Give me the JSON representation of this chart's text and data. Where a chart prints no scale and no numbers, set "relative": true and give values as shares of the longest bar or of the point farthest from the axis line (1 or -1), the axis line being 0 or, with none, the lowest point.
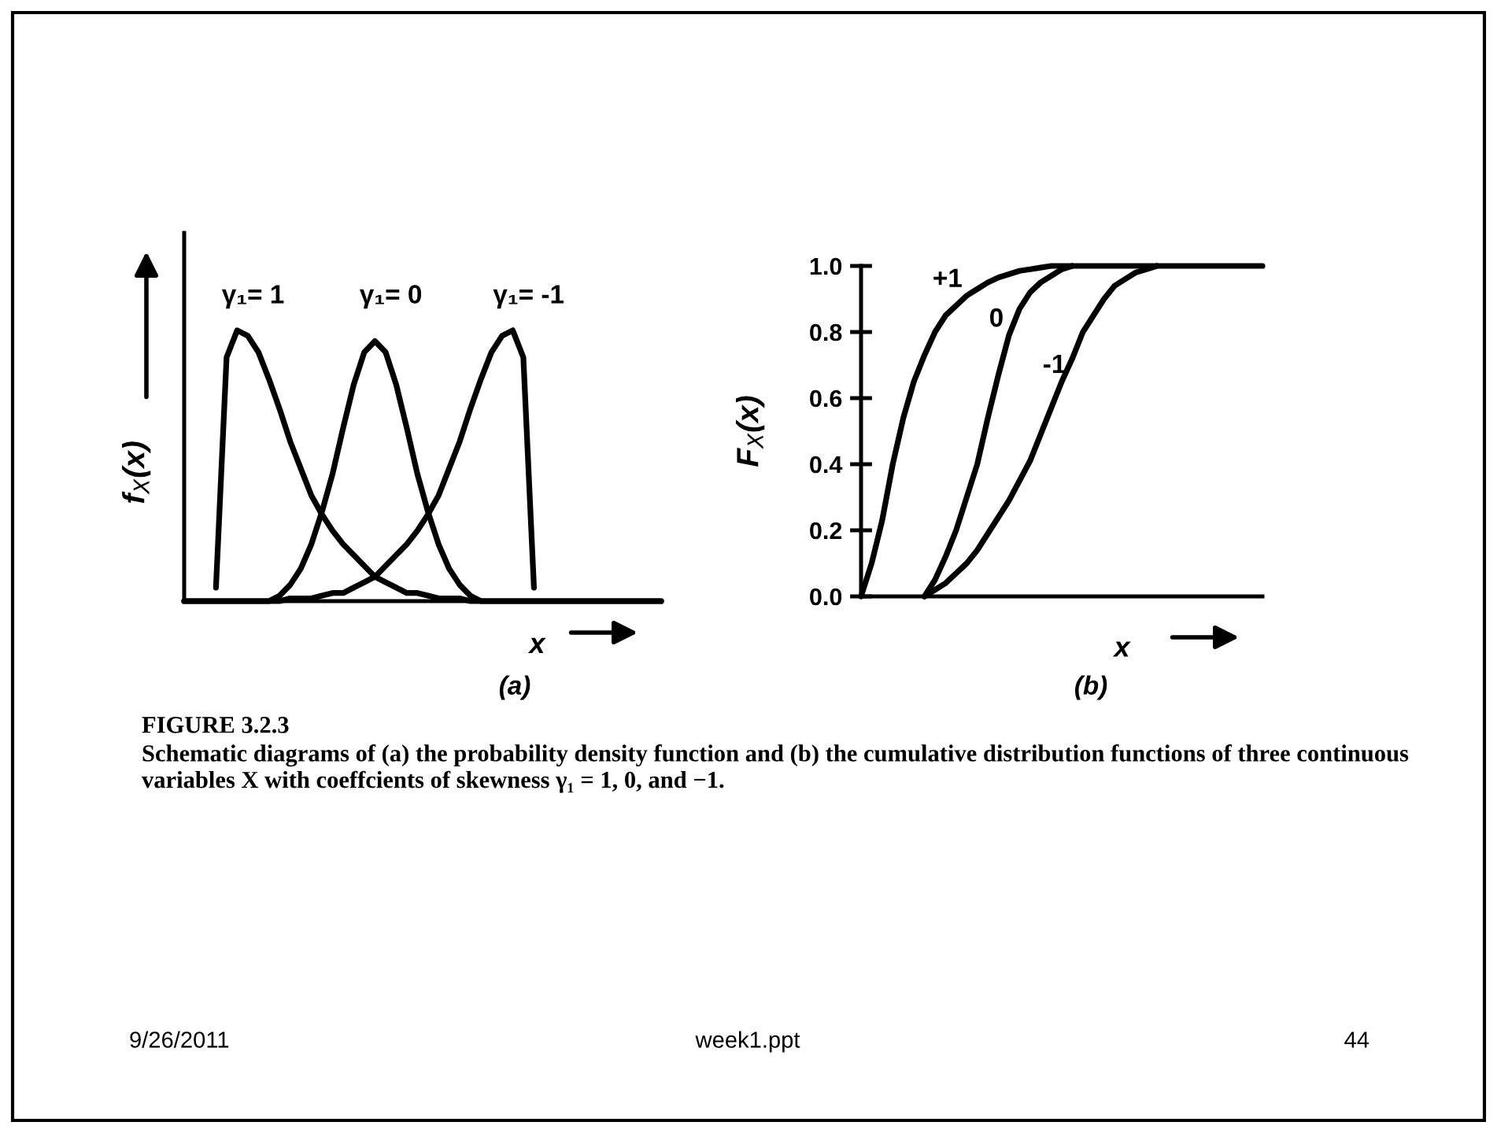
{
  "chart_data": [
    {
      "type": "line",
      "relative": true,
      "tick_labels": false,
      "ylabel": "f$_{X}$(x)",
      "xlabel": "x",
      "categories": [
        null,
        null,
        null,
        null,
        null,
        null,
        null,
        null,
        null,
        null,
        null,
        null,
        null,
        null,
        null,
        null,
        null,
        null,
        null,
        null,
        null,
        null,
        null,
        null,
        null,
        null,
        null,
        null,
        null,
        null,
        null,
        null,
        null,
        null,
        null,
        null,
        null,
        null,
        null,
        null,
        null,
        null,
        null,
        null,
        null,
        null
      ],
      "series": [
        {
          "name": "γ₁= 1",
          "color": "#000000",
          "values": [
            null,
            null,
            null,
            0.05,
            0.9,
            1.0,
            0.98,
            0.92,
            0.82,
            0.71,
            0.59,
            0.49,
            0.39,
            0.32,
            0.26,
            0.21,
            0.17,
            0.13,
            0.09,
            0.07,
            0.05,
            0.03,
            0.03,
            0.02,
            0.01,
            0.01,
            0.01,
            0,
            0,
            0,
            0,
            0,
            0,
            0,
            0,
            0,
            0,
            0,
            0,
            0,
            0,
            0,
            0,
            0,
            0,
            0
          ]
        },
        {
          "name": "γ₁= 0",
          "color": "#000000",
          "values": [
            0,
            0,
            0,
            0,
            0,
            0,
            0,
            0,
            0,
            0.02,
            0.06,
            0.12,
            0.21,
            0.33,
            0.47,
            0.64,
            0.8,
            0.92,
            0.96,
            0.92,
            0.8,
            0.64,
            0.47,
            0.33,
            0.21,
            0.12,
            0.06,
            0.02,
            0,
            0,
            0,
            0,
            0,
            0,
            0,
            0,
            0,
            0,
            0,
            0,
            0,
            0,
            0,
            0,
            0,
            0
          ]
        },
        {
          "name": "γ₁= -1",
          "color": "#000000",
          "values": [
            0,
            0,
            0,
            0,
            0,
            0,
            0,
            0,
            0,
            0,
            0.01,
            0.01,
            0.01,
            0.02,
            0.03,
            0.03,
            0.05,
            0.07,
            0.09,
            0.13,
            0.17,
            0.21,
            0.26,
            0.32,
            0.39,
            0.49,
            0.59,
            0.71,
            0.82,
            0.92,
            0.98,
            1.0,
            0.9,
            0.05,
            null,
            null,
            null,
            null,
            null,
            null,
            null,
            null,
            null,
            null,
            null,
            null
          ]
        }
      ],
      "annotations": [
        "(a)",
        "FIGURE 3.2.3",
        "Schematic diagrams of (a) the probability density function and (b) the cumulative distribution functions of three continuous variables X with coeffcients of skewness γ₁ = 1, 0, and −1.",
        "9/26/2011",
        "week1.ppt",
        "44"
      ]
    },
    {
      "type": "line",
      "tick_labels": "y",
      "ylabel": "F$_{X}$(x)",
      "xlabel": "x",
      "ylim": [
        0,
        1
      ],
      "yticks": [
        {
          "value": 0,
          "label": "0.0"
        },
        {
          "value": 0.2,
          "label": "0.2"
        },
        {
          "value": 0.4,
          "label": "0.4"
        },
        {
          "value": 0.6,
          "label": "0.6"
        },
        {
          "value": 0.8,
          "label": "0.8"
        },
        {
          "value": 1,
          "label": "1.0"
        }
      ],
      "categories": [
        null,
        null,
        null,
        null,
        null,
        null,
        null,
        null,
        null,
        null,
        null,
        null,
        null,
        null,
        null,
        null,
        null,
        null,
        null,
        null,
        null,
        null,
        null,
        null,
        null,
        null,
        null,
        null,
        null,
        null,
        null,
        null,
        null,
        null,
        null,
        null,
        null,
        null,
        null
      ],
      "series": [
        {
          "name": "+1",
          "color": "#000000",
          "values": [
            0,
            0.1,
            0.23,
            0.4,
            0.54,
            0.65,
            0.73,
            0.8,
            0.85,
            0.88,
            0.91,
            0.93,
            0.95,
            0.965,
            0.975,
            0.985,
            0.99,
            0.995,
            1,
            1,
            1,
            1,
            1,
            1,
            1,
            1,
            1,
            1,
            1,
            1,
            1,
            1,
            1,
            1,
            1,
            1,
            1,
            1,
            1
          ]
        },
        {
          "name": "0",
          "color": "#000000",
          "values": [
            null,
            null,
            null,
            null,
            null,
            null,
            0,
            0.05,
            0.12,
            0.2,
            0.3,
            0.4,
            0.54,
            0.67,
            0.79,
            0.87,
            0.92,
            0.95,
            0.97,
            0.99,
            1,
            null,
            null,
            null,
            null,
            null,
            null,
            null,
            null,
            null,
            null,
            null,
            null,
            null,
            null,
            null,
            null,
            null,
            null
          ]
        },
        {
          "name": "-1",
          "color": "#000000",
          "values": [
            null,
            null,
            null,
            null,
            null,
            null,
            0,
            0.02,
            0.04,
            0.07,
            0.1,
            0.14,
            0.19,
            0.24,
            0.29,
            0.35,
            0.41,
            0.49,
            0.57,
            0.65,
            0.72,
            0.8,
            0.85,
            0.9,
            0.94,
            0.96,
            0.98,
            0.99,
            1,
            null,
            null,
            null,
            null,
            null,
            null,
            null,
            null,
            null,
            null
          ]
        }
      ],
      "annotations": [
        "(b)"
      ]
    }
  ]
}
